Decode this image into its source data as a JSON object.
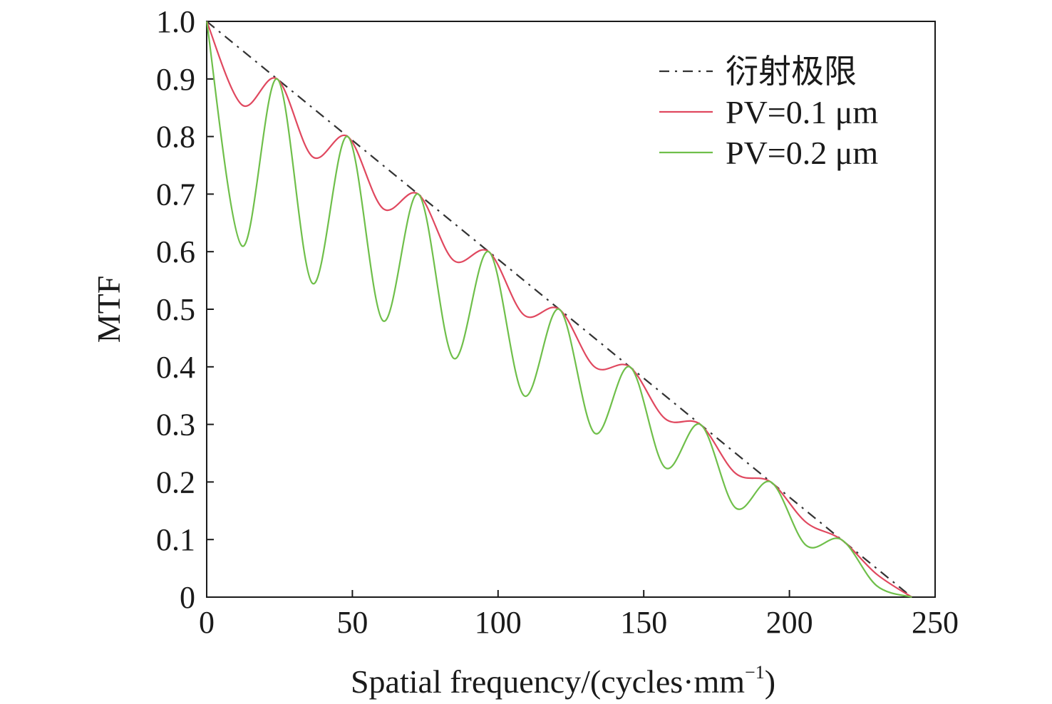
{
  "chart_data": {
    "type": "line",
    "xlabel": "Spatial frequency/(cycles·mm",
    "xlabel_superscript": "−1",
    "xlabel_close": ")",
    "ylabel": "MTF",
    "xlim": [
      0,
      250
    ],
    "ylim": [
      0,
      1.0
    ],
    "xticks": [
      0,
      50,
      100,
      150,
      200,
      250
    ],
    "xtick_labels": [
      "0",
      "50",
      "100",
      "150",
      "200",
      "250"
    ],
    "yticks": [
      0,
      0.1,
      0.2,
      0.3,
      0.4,
      0.5,
      0.6,
      0.7,
      0.8,
      0.9,
      1.0
    ],
    "ytick_labels": [
      "0",
      "0.1",
      "0.2",
      "0.3",
      "0.4",
      "0.5",
      "0.6",
      "0.7",
      "0.8",
      "0.9",
      "1.0"
    ],
    "grid": false,
    "legend_position": "top-right",
    "series": [
      {
        "name": "衍射极限",
        "color": "#333333",
        "dash": "dashdot",
        "x": [
          0,
          242
        ],
        "y": [
          1.0,
          0.0
        ]
      },
      {
        "name": "PV=0.1 μm",
        "color": "#e0485f",
        "dash": "solid",
        "x": [
          0,
          12.1,
          24.2,
          36.3,
          48.4,
          60.5,
          72.6,
          84.7,
          96.8,
          108.9,
          121.0,
          133.1,
          145.2,
          157.3,
          169.4,
          181.5,
          193.6,
          205.7,
          217.8,
          229.9,
          242
        ],
        "y": [
          1.0,
          0.855,
          0.9,
          0.765,
          0.8,
          0.675,
          0.7,
          0.585,
          0.6,
          0.49,
          0.5,
          0.4,
          0.4,
          0.31,
          0.3,
          0.215,
          0.2,
          0.13,
          0.1,
          0.04,
          0.0
        ]
      },
      {
        "name": "PV=0.2 μm",
        "color": "#6fbf4a",
        "dash": "solid",
        "x": [
          0,
          12.1,
          24.2,
          36.3,
          48.4,
          60.5,
          72.6,
          84.7,
          96.8,
          108.9,
          121.0,
          133.1,
          145.2,
          157.3,
          169.4,
          181.5,
          193.6,
          205.7,
          217.8,
          229.9,
          242
        ],
        "y": [
          1.0,
          0.61,
          0.9,
          0.545,
          0.8,
          0.48,
          0.7,
          0.415,
          0.6,
          0.35,
          0.5,
          0.285,
          0.4,
          0.225,
          0.3,
          0.155,
          0.2,
          0.09,
          0.1,
          0.02,
          0.0
        ]
      }
    ]
  }
}
